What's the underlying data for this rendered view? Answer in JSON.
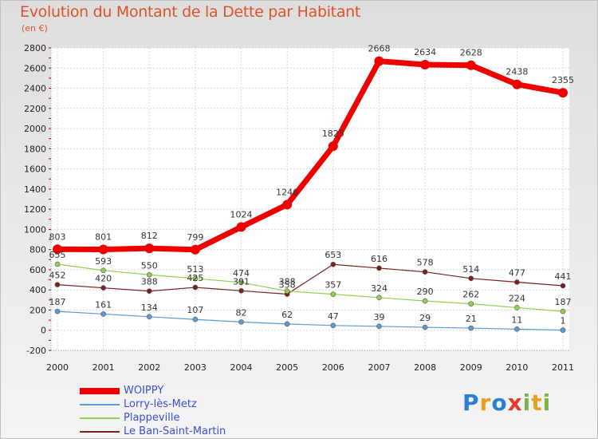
{
  "title": "Evolution du Montant de la Dette par Habitant",
  "subtitle": "(en €)",
  "logo": {
    "text": "Proxiti",
    "letters": [
      {
        "ch": "P",
        "color": "#2b7fd0"
      },
      {
        "ch": "r",
        "color": "#e8a11e"
      },
      {
        "ch": "o",
        "color": "#2b7fd0"
      },
      {
        "ch": "x",
        "color": "#e23a2a"
      },
      {
        "ch": "i",
        "color": "#7cb342"
      },
      {
        "ch": "t",
        "color": "#e8a11e"
      },
      {
        "ch": "i",
        "color": "#7cb342"
      }
    ]
  },
  "chart_data": {
    "type": "line",
    "x": [
      "2000",
      "2001",
      "2002",
      "2003",
      "2004",
      "2005",
      "2006",
      "2007",
      "2008",
      "2009",
      "2010",
      "2011"
    ],
    "ylim": [
      -200,
      2800
    ],
    "yticks": [
      -200,
      0,
      200,
      400,
      600,
      800,
      1000,
      1200,
      1400,
      1600,
      1800,
      2000,
      2200,
      2400,
      2600,
      2800
    ],
    "grid": true,
    "legend_position": "bottom-left",
    "series": [
      {
        "name": "WOIPPY",
        "color": "#ee0000",
        "width": 7,
        "marker": 6,
        "values": [
          803,
          801,
          812,
          799,
          1024,
          1246,
          1825,
          2668,
          2634,
          2628,
          2438,
          2355
        ],
        "labels": [
          "803",
          "801",
          "812",
          "799",
          "1024",
          "1246",
          "1825",
          "2668",
          "2634",
          "2628",
          "2438",
          "2355"
        ]
      },
      {
        "name": "Lorry-lès-Metz",
        "color": "#5b9bd5",
        "width": 1.2,
        "marker": 3,
        "values": [
          187,
          161,
          134,
          107,
          82,
          62,
          47,
          39,
          29,
          21,
          11,
          1
        ],
        "labels": [
          "187",
          "161",
          "134",
          "107",
          "82",
          "62",
          "47",
          "39",
          "29",
          "21",
          "11",
          "1"
        ]
      },
      {
        "name": "Plappeville",
        "color": "#92d050",
        "width": 1.2,
        "marker": 3,
        "values": [
          655,
          593,
          550,
          513,
          474,
          388,
          357,
          324,
          290,
          262,
          224,
          187
        ],
        "labels": [
          "655",
          "593",
          "550",
          "513",
          "474",
          "388",
          "357",
          "324",
          "290",
          "262",
          "224",
          "187"
        ]
      },
      {
        "name": "Le Ban-Saint-Martin",
        "color": "#7b1f1f",
        "width": 1.2,
        "marker": 3,
        "values": [
          452,
          420,
          388,
          425,
          391,
          358,
          653,
          616,
          578,
          514,
          477,
          441
        ],
        "labels": [
          "452",
          "420",
          "388",
          "425",
          "391",
          "358",
          "653",
          "616",
          "578",
          "514",
          "477",
          "441"
        ]
      }
    ]
  }
}
